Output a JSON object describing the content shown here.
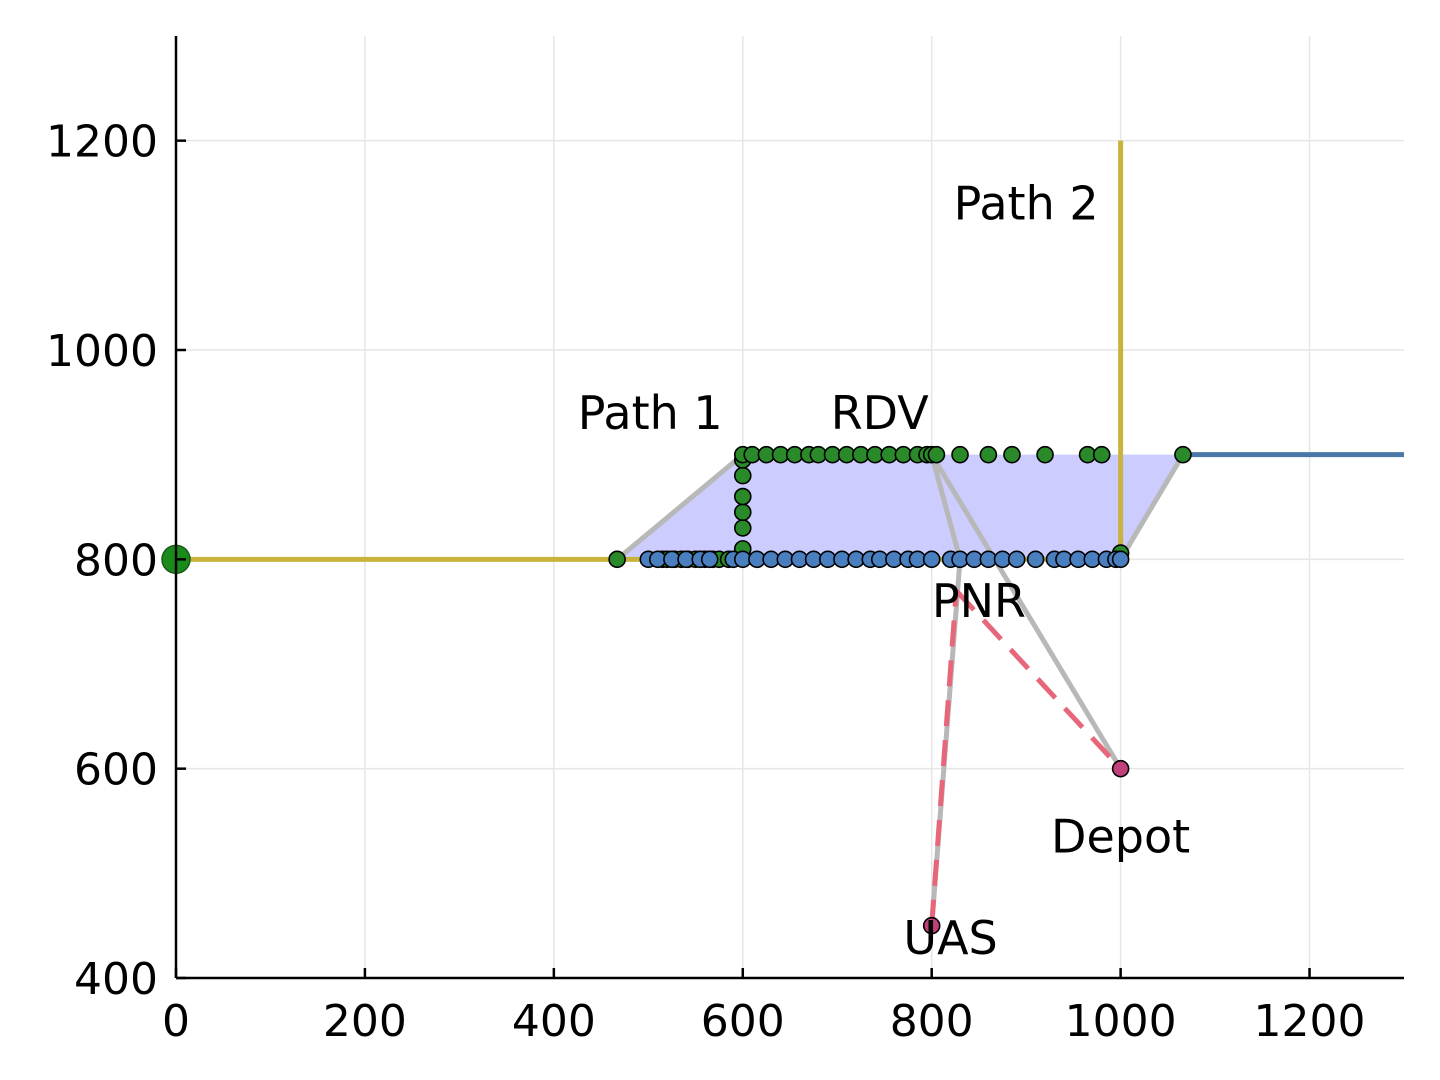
{
  "chart_data": {
    "type": "scatter",
    "title": "",
    "xlabel": "",
    "ylabel": "",
    "xlim": [
      0,
      1300
    ],
    "ylim": [
      400,
      1300
    ],
    "xticks": [
      0,
      200,
      400,
      600,
      800,
      1000,
      1200
    ],
    "yticks": [
      400,
      600,
      800,
      1000,
      1200
    ],
    "grid": true,
    "legend": "none",
    "colors": {
      "path_yellow": "#c8b43c",
      "path_blue": "#4a78a8",
      "region_fill": "#ccccff",
      "hull_gray": "#b8b8b8",
      "dash_red": "#e8667a",
      "green_point": "#2a8a2a",
      "blue_point": "#4a7fbf",
      "magenta_point": "#c0407a"
    },
    "lines": [
      {
        "id": "path1",
        "style": "solid",
        "color": "#c8b43c",
        "points": [
          [
            0,
            800
          ],
          [
            1000,
            800
          ]
        ]
      },
      {
        "id": "path2",
        "style": "solid",
        "color": "#c8b43c",
        "points": [
          [
            1000,
            800
          ],
          [
            1000,
            1200
          ]
        ]
      },
      {
        "id": "top-path",
        "style": "solid",
        "color": "#4a78a8",
        "points": [
          [
            1066,
            900
          ],
          [
            1300,
            900
          ]
        ]
      },
      {
        "id": "hull-left",
        "style": "solid",
        "color": "#b8b8b8",
        "points": [
          [
            467,
            800
          ],
          [
            600,
            900
          ]
        ]
      },
      {
        "id": "hull-right",
        "style": "solid",
        "color": "#b8b8b8",
        "points": [
          [
            1000,
            800
          ],
          [
            1066,
            900
          ]
        ]
      },
      {
        "id": "hull-rdv-depot",
        "style": "solid",
        "color": "#b8b8b8",
        "points": [
          [
            800,
            900
          ],
          [
            1000,
            600
          ]
        ]
      },
      {
        "id": "hull-rdv-pnr",
        "style": "solid",
        "color": "#b8b8b8",
        "points": [
          [
            800,
            900
          ],
          [
            830,
            800
          ]
        ]
      },
      {
        "id": "hull-uas-pnr",
        "style": "solid",
        "color": "#b8b8b8",
        "points": [
          [
            800,
            450
          ],
          [
            830,
            800
          ]
        ]
      },
      {
        "id": "dash-uas-pnr",
        "style": "dashed",
        "color": "#e8667a",
        "points": [
          [
            800,
            450
          ],
          [
            826,
            770
          ]
        ]
      },
      {
        "id": "dash-pnr-depot",
        "style": "dashed",
        "color": "#e8667a",
        "points": [
          [
            826,
            770
          ],
          [
            1000,
            600
          ]
        ]
      }
    ],
    "region": {
      "color": "#ccccff",
      "points": [
        [
          467,
          800
        ],
        [
          600,
          900
        ],
        [
          1066,
          900
        ],
        [
          1000,
          800
        ]
      ]
    },
    "series": [
      {
        "color": "#2a8a2a",
        "points": [
          [
            467,
            800
          ],
          [
            515,
            800
          ],
          [
            520,
            800
          ],
          [
            528,
            800
          ],
          [
            535,
            800
          ],
          [
            542,
            800
          ],
          [
            550,
            800
          ],
          [
            560,
            800
          ],
          [
            568,
            800
          ],
          [
            575,
            800
          ],
          [
            585,
            800
          ],
          [
            600,
            810
          ],
          [
            600,
            830
          ],
          [
            600,
            845
          ],
          [
            600,
            860
          ],
          [
            600,
            880
          ],
          [
            600,
            895
          ],
          [
            600,
            900
          ],
          [
            610,
            900
          ],
          [
            625,
            900
          ],
          [
            640,
            900
          ],
          [
            655,
            900
          ],
          [
            670,
            900
          ],
          [
            680,
            900
          ],
          [
            695,
            900
          ],
          [
            710,
            900
          ],
          [
            725,
            900
          ],
          [
            740,
            900
          ],
          [
            755,
            900
          ],
          [
            770,
            900
          ],
          [
            785,
            900
          ],
          [
            795,
            900
          ],
          [
            800,
            900
          ],
          [
            805,
            900
          ],
          [
            830,
            900
          ],
          [
            860,
            900
          ],
          [
            885,
            900
          ],
          [
            920,
            900
          ],
          [
            965,
            900
          ],
          [
            980,
            900
          ],
          [
            1066,
            900
          ],
          [
            1000,
            806
          ]
        ]
      },
      {
        "color": "#4a7fbf",
        "points": [
          [
            500,
            800
          ],
          [
            510,
            800
          ],
          [
            525,
            800
          ],
          [
            540,
            800
          ],
          [
            555,
            800
          ],
          [
            565,
            800
          ],
          [
            590,
            800
          ],
          [
            600,
            800
          ],
          [
            615,
            800
          ],
          [
            630,
            800
          ],
          [
            645,
            800
          ],
          [
            660,
            800
          ],
          [
            675,
            800
          ],
          [
            690,
            800
          ],
          [
            705,
            800
          ],
          [
            720,
            800
          ],
          [
            735,
            800
          ],
          [
            745,
            800
          ],
          [
            760,
            800
          ],
          [
            775,
            800
          ],
          [
            785,
            800
          ],
          [
            800,
            800
          ],
          [
            820,
            800
          ],
          [
            830,
            800
          ],
          [
            845,
            800
          ],
          [
            860,
            800
          ],
          [
            875,
            800
          ],
          [
            890,
            800
          ],
          [
            910,
            800
          ],
          [
            930,
            800
          ],
          [
            940,
            800
          ],
          [
            955,
            800
          ],
          [
            970,
            800
          ],
          [
            985,
            800
          ],
          [
            995,
            800
          ],
          [
            1000,
            800
          ]
        ]
      },
      {
        "color": "#c0407a",
        "points": [
          [
            800,
            450
          ],
          [
            1000,
            600
          ]
        ]
      }
    ],
    "big_points": [
      {
        "color": "#1a8a1a",
        "point": [
          0,
          800
        ]
      }
    ],
    "annotations": [
      {
        "text": "Path 1",
        "x": 502,
        "y": 940
      },
      {
        "text": "RDV",
        "x": 745,
        "y": 940
      },
      {
        "text": "Path 2",
        "x": 900,
        "y": 1140
      },
      {
        "text": "PNR",
        "x": 850,
        "y": 760
      },
      {
        "text": "Depot",
        "x": 1000,
        "y": 535
      },
      {
        "text": "UAS",
        "x": 820,
        "y": 438
      }
    ]
  }
}
